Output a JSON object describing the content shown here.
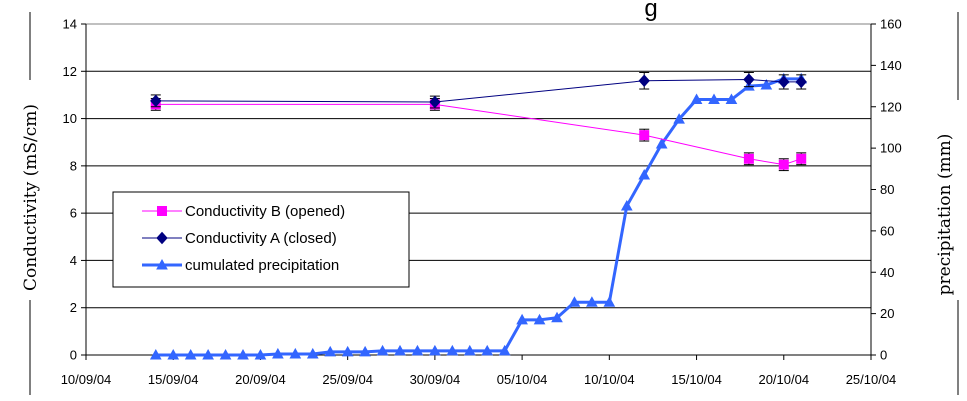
{
  "chart_data": {
    "type": "line",
    "title": "g",
    "xlabel": "",
    "ylabel": "Conductivity (mS/cm)",
    "y2label": "precipitation (mm)",
    "ylim": [
      0,
      14
    ],
    "y2lim": [
      0,
      160
    ],
    "xlim": [
      "10/09/04",
      "25/10/04"
    ],
    "x_ticks": [
      "10/09/04",
      "15/09/04",
      "20/09/04",
      "25/09/04",
      "30/09/04",
      "05/10/04",
      "10/10/04",
      "15/10/04",
      "20/10/04",
      "25/10/04"
    ],
    "y_ticks": [
      "0",
      "2",
      "4",
      "6",
      "8",
      "10",
      "12",
      "14"
    ],
    "y2_ticks": [
      "0",
      "20",
      "40",
      "60",
      "80",
      "100",
      "120",
      "140",
      "160"
    ],
    "grid": "horizontal",
    "legend_position": "left-middle",
    "series": [
      {
        "name": "Conductivity B (opened)",
        "axis": "left",
        "color": "#ff00ff",
        "marker": "square",
        "points": [
          {
            "x": "14/09/04",
            "y": 10.6,
            "err": 0.25
          },
          {
            "x": "30/09/04",
            "y": 10.6,
            "err": 0.25
          },
          {
            "x": "12/10/04",
            "y": 9.3,
            "err": 0.25
          },
          {
            "x": "18/10/04",
            "y": 8.3,
            "err": 0.25
          },
          {
            "x": "20/10/04",
            "y": 8.05,
            "err": 0.25
          },
          {
            "x": "21/10/04",
            "y": 8.3,
            "err": 0.25
          }
        ]
      },
      {
        "name": "Conductivity A (closed)",
        "axis": "left",
        "color": "#000080",
        "marker": "diamond",
        "points": [
          {
            "x": "14/09/04",
            "y": 10.75,
            "err": 0.25
          },
          {
            "x": "30/09/04",
            "y": 10.7,
            "err": 0.25
          },
          {
            "x": "12/10/04",
            "y": 11.6,
            "err": 0.35
          },
          {
            "x": "18/10/04",
            "y": 11.65,
            "err": 0.3
          },
          {
            "x": "20/10/04",
            "y": 11.55,
            "err": 0.3
          },
          {
            "x": "21/10/04",
            "y": 11.55,
            "err": 0.3
          }
        ]
      },
      {
        "name": "cumulated precipitation",
        "axis": "right",
        "color": "#3366ff",
        "marker": "triangle",
        "points": [
          {
            "x": "14/09/04",
            "y": 0
          },
          {
            "x": "15/09/04",
            "y": 0
          },
          {
            "x": "16/09/04",
            "y": 0
          },
          {
            "x": "17/09/04",
            "y": 0
          },
          {
            "x": "18/09/04",
            "y": 0
          },
          {
            "x": "19/09/04",
            "y": 0
          },
          {
            "x": "20/09/04",
            "y": 0
          },
          {
            "x": "21/09/04",
            "y": 0.5
          },
          {
            "x": "22/09/04",
            "y": 0.5
          },
          {
            "x": "23/09/04",
            "y": 0.5
          },
          {
            "x": "24/09/04",
            "y": 1.5
          },
          {
            "x": "25/09/04",
            "y": 1.5
          },
          {
            "x": "26/09/04",
            "y": 1.5
          },
          {
            "x": "27/09/04",
            "y": 2
          },
          {
            "x": "28/09/04",
            "y": 2
          },
          {
            "x": "29/09/04",
            "y": 2
          },
          {
            "x": "30/09/04",
            "y": 2
          },
          {
            "x": "01/10/04",
            "y": 2
          },
          {
            "x": "02/10/04",
            "y": 2
          },
          {
            "x": "03/10/04",
            "y": 2
          },
          {
            "x": "04/10/04",
            "y": 2
          },
          {
            "x": "05/10/04",
            "y": 17
          },
          {
            "x": "06/10/04",
            "y": 17
          },
          {
            "x": "07/10/04",
            "y": 18
          },
          {
            "x": "08/10/04",
            "y": 25.5
          },
          {
            "x": "09/10/04",
            "y": 25.5
          },
          {
            "x": "10/10/04",
            "y": 25.5
          },
          {
            "x": "11/10/04",
            "y": 72
          },
          {
            "x": "12/10/04",
            "y": 87
          },
          {
            "x": "13/10/04",
            "y": 102
          },
          {
            "x": "14/10/04",
            "y": 114
          },
          {
            "x": "15/10/04",
            "y": 123.5
          },
          {
            "x": "16/10/04",
            "y": 123.5
          },
          {
            "x": "17/10/04",
            "y": 123.5
          },
          {
            "x": "18/10/04",
            "y": 130
          },
          {
            "x": "19/10/04",
            "y": 130.5
          },
          {
            "x": "20/10/04",
            "y": 133.5
          },
          {
            "x": "21/10/04",
            "y": 133.5
          }
        ]
      }
    ]
  }
}
